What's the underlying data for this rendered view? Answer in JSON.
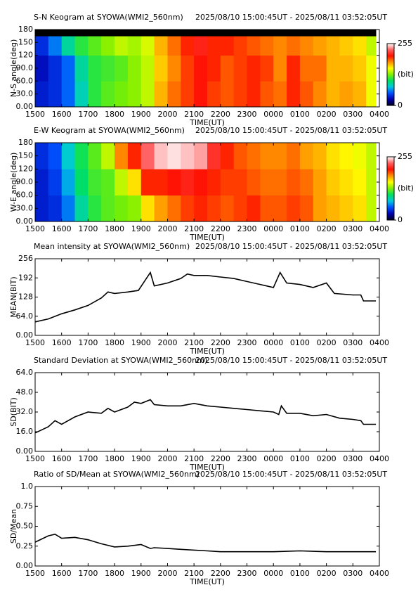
{
  "chart_data": [
    {
      "type": "heatmap",
      "title": "S-N Keogram at SYOWA(WMI2_560nm)",
      "subtitle": "2025/08/10 15:00:45UT - 2025/08/11 03:52:05UT",
      "xlabel": "TIME(UT)",
      "ylabel": "N-S angle(deg)",
      "xlim": [
        15,
        28
      ],
      "xticks": [
        {
          "value": 15,
          "label": "1500"
        },
        {
          "value": 16,
          "label": "1600"
        },
        {
          "value": 17,
          "label": "1700"
        },
        {
          "value": 18,
          "label": "1800"
        },
        {
          "value": 19,
          "label": "1900"
        },
        {
          "value": 20,
          "label": "2000"
        },
        {
          "value": 21,
          "label": "2100"
        },
        {
          "value": 22,
          "label": "2200"
        },
        {
          "value": 23,
          "label": "2300"
        },
        {
          "value": 24,
          "label": "0000"
        },
        {
          "value": 25,
          "label": "0100"
        },
        {
          "value": 26,
          "label": "0200"
        },
        {
          "value": 27,
          "label": "0300"
        },
        {
          "value": 28,
          "label": "0400"
        }
      ],
      "ylim": [
        0,
        180
      ],
      "yticks": [
        {
          "value": 0,
          "label": "0.00"
        },
        {
          "value": 30,
          "label": "30.0"
        },
        {
          "value": 60,
          "label": "60.0"
        },
        {
          "value": 90,
          "label": "90.0"
        },
        120,
        150,
        180
      ],
      "xbins": [
        15,
        15.5,
        16,
        16.5,
        17,
        17.5,
        18,
        18.5,
        19,
        19.5,
        20,
        20.5,
        21,
        21.5,
        22,
        22.5,
        23,
        23.5,
        24,
        24.5,
        25,
        25.5,
        26,
        26.5,
        27,
        27.5,
        27.87
      ],
      "ybins": [
        0,
        60,
        120,
        165,
        180
      ],
      "values": [
        [
          35,
          40,
          55,
          85,
          110,
          120,
          125,
          130,
          140,
          170,
          185,
          195,
          205,
          195,
          190,
          195,
          200,
          190,
          185,
          200,
          190,
          180,
          170,
          175,
          170,
          150
        ],
        [
          30,
          40,
          55,
          90,
          110,
          115,
          120,
          130,
          140,
          165,
          180,
          195,
          205,
          200,
          190,
          195,
          200,
          195,
          180,
          200,
          185,
          185,
          170,
          170,
          165,
          150
        ],
        [
          40,
          60,
          90,
          110,
          120,
          130,
          140,
          135,
          145,
          170,
          185,
          200,
          210,
          200,
          200,
          195,
          190,
          185,
          180,
          185,
          180,
          175,
          170,
          165,
          160,
          140
        ],
        [
          null,
          null,
          null,
          null,
          null,
          null,
          null,
          null,
          null,
          null,
          null,
          null,
          null,
          null,
          null,
          null,
          null,
          null,
          null,
          null,
          null,
          null,
          null,
          null,
          null,
          null
        ]
      ],
      "colormap": [
        "#000020",
        "#0000b0",
        "#0050ff",
        "#00c8e0",
        "#00e060",
        "#80f000",
        "#ffff00",
        "#ff9000",
        "#ff1000",
        "#ff6060",
        "#ffffff"
      ],
      "colorbar": {
        "lim": [
          0,
          255
        ],
        "ticks": [
          0,
          255
        ],
        "label": "(bit)"
      }
    },
    {
      "type": "heatmap",
      "title": "E-W Keogram at SYOWA(WMI2_560nm)",
      "subtitle": "2025/08/10 15:00:45UT - 2025/08/11 03:52:05UT",
      "xlabel": "TIME(UT)",
      "ylabel": "W-E angle(deg)",
      "xlim": [
        15,
        28
      ],
      "xticks": [
        {
          "value": 15,
          "label": "1500"
        },
        {
          "value": 16,
          "label": "1600"
        },
        {
          "value": 17,
          "label": "1700"
        },
        {
          "value": 18,
          "label": "1800"
        },
        {
          "value": 19,
          "label": "1900"
        },
        {
          "value": 20,
          "label": "2000"
        },
        {
          "value": 21,
          "label": "2100"
        },
        {
          "value": 22,
          "label": "2200"
        },
        {
          "value": 23,
          "label": "2300"
        },
        {
          "value": 24,
          "label": "0000"
        },
        {
          "value": 25,
          "label": "0100"
        },
        {
          "value": 26,
          "label": "0200"
        },
        {
          "value": 27,
          "label": "0300"
        },
        {
          "value": 28,
          "label": "0400"
        }
      ],
      "ylim": [
        0,
        180
      ],
      "yticks": [
        {
          "value": 0,
          "label": "0.00"
        },
        {
          "value": 30,
          "label": "30.0"
        },
        {
          "value": 60,
          "label": "60.0"
        },
        {
          "value": 90,
          "label": "90.0"
        },
        120,
        150,
        180
      ],
      "xbins": [
        15,
        15.5,
        16,
        16.5,
        17,
        17.5,
        18,
        18.5,
        19,
        19.5,
        20,
        20.5,
        21,
        21.5,
        22,
        22.5,
        23,
        23.5,
        24,
        24.5,
        25,
        25.5,
        26,
        26.5,
        27,
        27.5,
        27.87
      ],
      "ybins": [
        0,
        60,
        120,
        180
      ],
      "values": [
        [
          35,
          40,
          60,
          90,
          110,
          120,
          125,
          130,
          160,
          175,
          185,
          195,
          200,
          195,
          190,
          195,
          200,
          190,
          190,
          195,
          190,
          175,
          170,
          165,
          160,
          140
        ],
        [
          35,
          45,
          70,
          100,
          115,
          120,
          140,
          160,
          200,
          200,
          205,
          210,
          205,
          200,
          195,
          195,
          190,
          185,
          185,
          190,
          185,
          175,
          165,
          160,
          155,
          140
        ],
        [
          40,
          50,
          80,
          105,
          120,
          140,
          180,
          200,
          230,
          245,
          250,
          245,
          240,
          215,
          200,
          190,
          185,
          180,
          180,
          185,
          175,
          170,
          160,
          155,
          150,
          140
        ]
      ],
      "colormap": [
        "#000020",
        "#0000b0",
        "#0050ff",
        "#00c8e0",
        "#00e060",
        "#80f000",
        "#ffff00",
        "#ff9000",
        "#ff1000",
        "#ff6060",
        "#ffffff"
      ],
      "colorbar": {
        "lim": [
          0,
          255
        ],
        "ticks": [
          0,
          255
        ],
        "label": "(bit)"
      }
    },
    {
      "type": "line",
      "title": "Mean intensity at SYOWA(WMI2_560nm)",
      "subtitle": "2025/08/10 15:00:45UT - 2025/08/11 03:52:05UT",
      "xlabel": "TIME(UT)",
      "ylabel": "MEAN(BIT)",
      "xlim": [
        15,
        28
      ],
      "xticks": [
        {
          "value": 15,
          "label": "1500"
        },
        {
          "value": 16,
          "label": "1600"
        },
        {
          "value": 17,
          "label": "1700"
        },
        {
          "value": 18,
          "label": "1800"
        },
        {
          "value": 19,
          "label": "1900"
        },
        {
          "value": 20,
          "label": "2000"
        },
        {
          "value": 21,
          "label": "2100"
        },
        {
          "value": 22,
          "label": "2200"
        },
        {
          "value": 23,
          "label": "2300"
        },
        {
          "value": 24,
          "label": "0000"
        },
        {
          "value": 25,
          "label": "0100"
        },
        {
          "value": 26,
          "label": "0200"
        },
        {
          "value": 27,
          "label": "0300"
        },
        {
          "value": 28,
          "label": "0400"
        }
      ],
      "ylim": [
        0,
        256
      ],
      "yticks": [
        {
          "value": 0,
          "label": "0.00"
        },
        {
          "value": 64,
          "label": "64.0"
        },
        128,
        192,
        256
      ],
      "x": [
        15,
        15.5,
        16,
        16.5,
        17,
        17.5,
        17.75,
        18,
        18.5,
        18.9,
        19.35,
        19.5,
        20,
        20.5,
        20.75,
        21,
        21.5,
        22,
        22.5,
        23,
        23.5,
        24,
        24.25,
        24.5,
        25,
        25.5,
        26,
        26.3,
        27,
        27.3,
        27.4,
        27.87
      ],
      "values": [
        45,
        55,
        72,
        85,
        100,
        125,
        145,
        140,
        145,
        150,
        210,
        165,
        175,
        190,
        205,
        200,
        200,
        195,
        190,
        180,
        170,
        160,
        210,
        175,
        170,
        160,
        175,
        140,
        135,
        135,
        115,
        115
      ],
      "color": "#000000"
    },
    {
      "type": "line",
      "title": "Standard Deviation at SYOWA(WMI2_560nm)",
      "subtitle": "2025/08/10 15:00:45UT - 2025/08/11 03:52:05UT",
      "xlabel": "TIME(UT)",
      "ylabel": "SD(BIT)",
      "xlim": [
        15,
        28
      ],
      "xticks": [
        {
          "value": 15,
          "label": "1500"
        },
        {
          "value": 16,
          "label": "1600"
        },
        {
          "value": 17,
          "label": "1700"
        },
        {
          "value": 18,
          "label": "1800"
        },
        {
          "value": 19,
          "label": "1900"
        },
        {
          "value": 20,
          "label": "2000"
        },
        {
          "value": 21,
          "label": "2100"
        },
        {
          "value": 22,
          "label": "2200"
        },
        {
          "value": 23,
          "label": "2300"
        },
        {
          "value": 24,
          "label": "0000"
        },
        {
          "value": 25,
          "label": "0100"
        },
        {
          "value": 26,
          "label": "0200"
        },
        {
          "value": 27,
          "label": "0300"
        },
        {
          "value": 28,
          "label": "0400"
        }
      ],
      "ylim": [
        0,
        64
      ],
      "yticks": [
        {
          "value": 0,
          "label": "0.00"
        },
        {
          "value": 16,
          "label": "16.0"
        },
        {
          "value": 32,
          "label": "32.0"
        },
        {
          "value": 48,
          "label": "48.0"
        },
        {
          "value": 64,
          "label": "64.0"
        }
      ],
      "x": [
        15,
        15.5,
        15.75,
        16,
        16.5,
        17,
        17.5,
        17.75,
        18,
        18.5,
        18.75,
        19,
        19.35,
        19.5,
        20,
        20.5,
        21,
        21.5,
        22,
        22.5,
        23,
        23.5,
        24,
        24.2,
        24.3,
        24.5,
        25,
        25.5,
        26,
        26.5,
        27,
        27.3,
        27.4,
        27.87
      ],
      "values": [
        15,
        20,
        25,
        22,
        28,
        32,
        31,
        35,
        32,
        36,
        40,
        39,
        42,
        38,
        37,
        37,
        39,
        37,
        36,
        35,
        34,
        33,
        32,
        30,
        37,
        31,
        31,
        29,
        30,
        27,
        26,
        25,
        22,
        22
      ],
      "color": "#000000"
    },
    {
      "type": "line",
      "title": "Ratio of SD/Mean at SYOWA(WMI2_560nm)",
      "subtitle": "2025/08/10 15:00:45UT - 2025/08/11 03:52:05UT",
      "xlabel": "TIME(UT)",
      "ylabel": "SD/Mean",
      "xlim": [
        15,
        28
      ],
      "xticks": [
        {
          "value": 15,
          "label": "1500"
        },
        {
          "value": 16,
          "label": "1600"
        },
        {
          "value": 17,
          "label": "1700"
        },
        {
          "value": 18,
          "label": "1800"
        },
        {
          "value": 19,
          "label": "1900"
        },
        {
          "value": 20,
          "label": "2000"
        },
        {
          "value": 21,
          "label": "2100"
        },
        {
          "value": 22,
          "label": "2200"
        },
        {
          "value": 23,
          "label": "2300"
        },
        {
          "value": 24,
          "label": "0000"
        },
        {
          "value": 25,
          "label": "0100"
        },
        {
          "value": 26,
          "label": "0200"
        },
        {
          "value": 27,
          "label": "0300"
        },
        {
          "value": 28,
          "label": "0400"
        }
      ],
      "ylim": [
        0,
        1
      ],
      "yticks": [
        {
          "value": 0,
          "label": "0.00"
        },
        0.25,
        {
          "value": 0.5,
          "label": "0.50"
        },
        0.75,
        {
          "value": 1,
          "label": "1.0"
        }
      ],
      "x": [
        15,
        15.5,
        15.75,
        16,
        16.5,
        17,
        17.5,
        18,
        18.5,
        19,
        19.35,
        19.5,
        20,
        20.5,
        21,
        21.5,
        22,
        23,
        24,
        25,
        26,
        27,
        27.87
      ],
      "values": [
        0.3,
        0.38,
        0.4,
        0.35,
        0.36,
        0.33,
        0.28,
        0.24,
        0.25,
        0.27,
        0.22,
        0.23,
        0.22,
        0.21,
        0.2,
        0.19,
        0.18,
        0.18,
        0.18,
        0.19,
        0.18,
        0.18,
        0.18
      ],
      "color": "#000000"
    }
  ]
}
